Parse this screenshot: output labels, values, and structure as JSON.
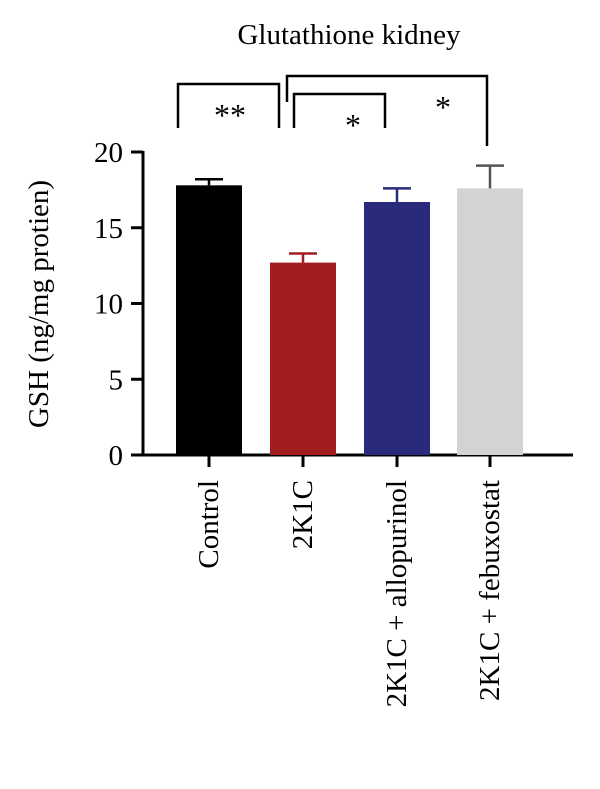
{
  "chart_data": {
    "type": "bar",
    "title": "Glutathione kidney",
    "ylabel": "GSH (ng/mg protien)",
    "xlabel": "",
    "ylim": [
      0,
      20
    ],
    "yticks": [
      0,
      5,
      10,
      15,
      20
    ],
    "categories": [
      "Control",
      "2K1C",
      "2K1C + allopurinol",
      "2K1C + febuxostat"
    ],
    "values": [
      17.8,
      12.7,
      16.7,
      17.6
    ],
    "errors": [
      0.4,
      0.6,
      0.9,
      1.5
    ],
    "colors": [
      "#000000",
      "#a11d20",
      "#2a2a7d",
      "#d3d3d3"
    ],
    "error_bar_colors": [
      "#000000",
      "#a11d20",
      "#2a2a7d",
      "#555555"
    ],
    "significance": [
      {
        "from": "Control",
        "to": "2K1C",
        "label": "**"
      },
      {
        "from": "2K1C",
        "to": "2K1C + allopurinol",
        "label": "*"
      },
      {
        "from": "2K1C",
        "to": "2K1C + febuxostat",
        "label": "*"
      }
    ],
    "grid": false,
    "legend": "none"
  }
}
